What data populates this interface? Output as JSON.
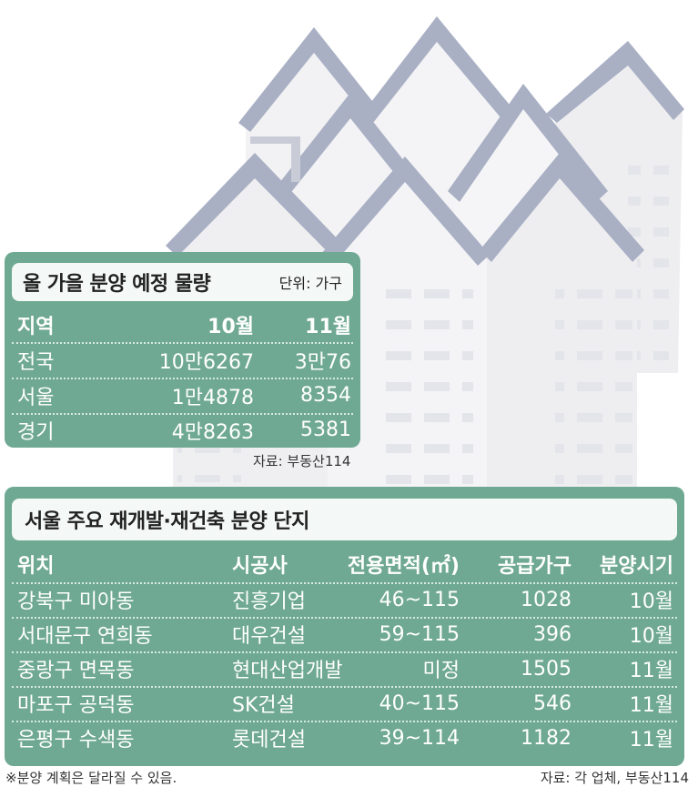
{
  "box1": {
    "title": "올 가을 분양 예정 물량",
    "unit": "단위: 가구",
    "headers": [
      "지역",
      "10월",
      "11월"
    ],
    "rows": [
      [
        "전국",
        "10만6267",
        "3만76"
      ],
      [
        "서울",
        "1만4878",
        "8354"
      ],
      [
        "경기",
        "4만8263",
        "5381"
      ]
    ],
    "source": "자료: 부동산114"
  },
  "box2": {
    "title": "서울 주요 재개발·재건축 분양 단지",
    "headers": [
      "위치",
      "시공사",
      "전용면적(㎡)",
      "공급가구",
      "분양시기"
    ],
    "rows": [
      [
        "강북구 미아동",
        "진흥기업",
        "46~115",
        "1028",
        "10월"
      ],
      [
        "서대문구 연희동",
        "대우건설",
        "59~115",
        "396",
        "10월"
      ],
      [
        "중랑구 면목동",
        "현대산업개발",
        "미정",
        "1505",
        "11월"
      ],
      [
        "마포구 공덕동",
        "SK건설",
        "40~115",
        "546",
        "11월"
      ],
      [
        "은평구 수색동",
        "롯데건설",
        "39~114",
        "1182",
        "11월"
      ]
    ]
  },
  "footnote": "※분양 계획은 달라질 수 있음.",
  "source2": "자료: 각 업체, 부동산114",
  "colors": {
    "panel": "#6fa993",
    "roof": "#a9b0c4",
    "building": "#f0f0f2",
    "window": "#e2e3e7"
  }
}
